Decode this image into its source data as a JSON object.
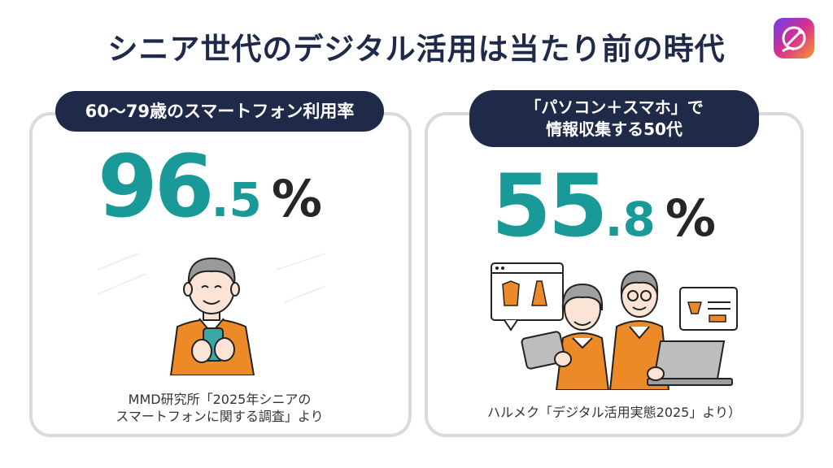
{
  "title": "シニア世代のデジタル活用は当たり前の時代",
  "app_icon": "satellite-dish-icon",
  "colors": {
    "navy": "#1f2a48",
    "teal": "#199a99",
    "card_border": "#dadada",
    "orange": "#ec8a27"
  },
  "left_card": {
    "label": "60〜79歳のスマートフォン利用率",
    "value_int": "96",
    "value_dec": ".5",
    "unit": "%",
    "illustration": "senior-man-with-smartphone",
    "source_line1": "MMD研究所「2025年シニアの",
    "source_line2": "スマートフォンに関する調査」より"
  },
  "right_card": {
    "label_line1": "「パソコン＋スマホ」で",
    "label_line2": "情報収集する50代",
    "value_int": "55",
    "value_dec": ".8",
    "unit": "%",
    "illustration": "senior-couple-online-shopping",
    "source": "ハルメク「デジタル活用実態2025」より）"
  }
}
